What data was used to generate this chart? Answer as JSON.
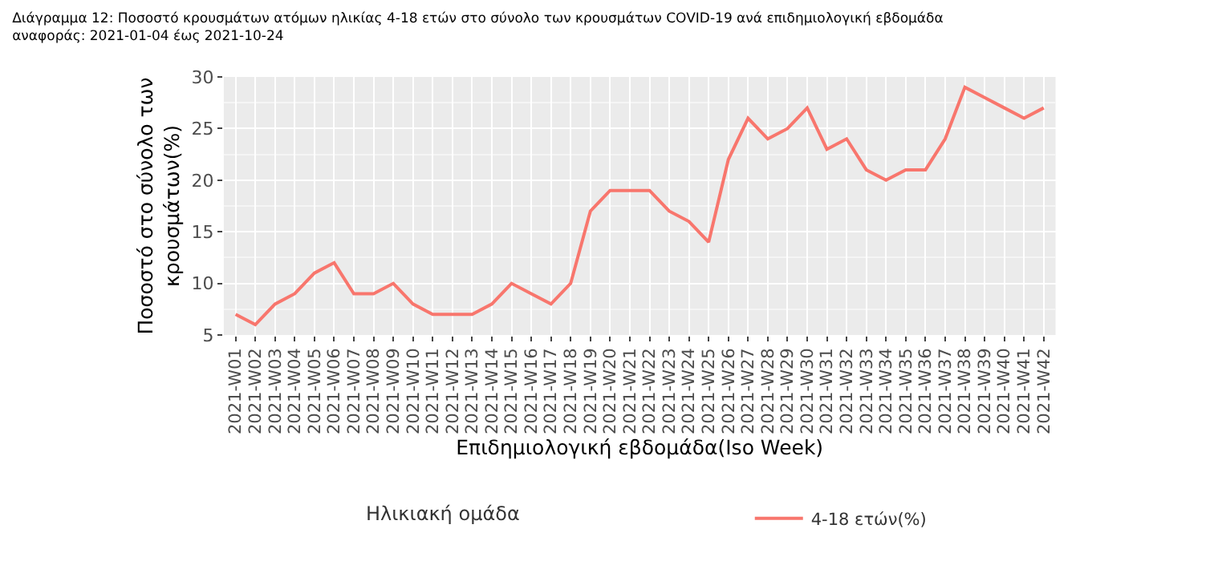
{
  "chart_data": {
    "type": "line",
    "title": "Διάγραμμα 12: Ποσοστό κρουσμάτων ατόμων ηλικίας 4-18 ετών στο σύνολο των κρουσμάτων COVID-19 ανά επιδημιολογική εβδομάδα αναφοράς: 2021-01-04 έως 2021-10-24",
    "xlabel": "Επιδημιολογική εβδομάδα(Iso Week)",
    "ylabel": "Ποσοστό στο σύνολο των κρουσμάτων(%)",
    "legend_title": "Ηλικιακή ομάδα",
    "legend": "bottom",
    "grid": true,
    "categories": [
      "2021-W01",
      "2021-W02",
      "2021-W03",
      "2021-W04",
      "2021-W05",
      "2021-W06",
      "2021-W07",
      "2021-W08",
      "2021-W09",
      "2021-W10",
      "2021-W11",
      "2021-W12",
      "2021-W13",
      "2021-W14",
      "2021-W15",
      "2021-W16",
      "2021-W17",
      "2021-W18",
      "2021-W19",
      "2021-W20",
      "2021-W21",
      "2021-W22",
      "2021-W23",
      "2021-W24",
      "2021-W25",
      "2021-W26",
      "2021-W27",
      "2021-W28",
      "2021-W29",
      "2021-W30",
      "2021-W31",
      "2021-W32",
      "2021-W33",
      "2021-W34",
      "2021-W35",
      "2021-W36",
      "2021-W37",
      "2021-W38",
      "2021-W39",
      "2021-W40",
      "2021-W41",
      "2021-W42"
    ],
    "ylim": [
      5,
      30
    ],
    "yticks": [
      5,
      10,
      15,
      20,
      25,
      30
    ],
    "series": [
      {
        "name": "4-18 ετών(%)",
        "color": "#f8766d",
        "values": [
          7,
          6,
          8,
          9,
          11,
          12,
          9,
          9,
          10,
          8,
          7,
          7,
          7,
          8,
          10,
          9,
          8,
          10,
          17,
          19,
          19,
          19,
          17,
          16,
          14,
          22,
          26,
          24,
          25,
          27,
          23,
          24,
          21,
          20,
          21,
          21,
          24,
          29,
          28,
          27,
          26,
          27
        ]
      }
    ]
  }
}
